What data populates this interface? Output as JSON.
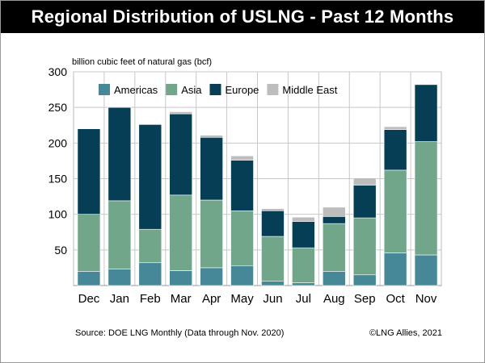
{
  "title": "Regional Distribution of USLNG - Past 12 Months",
  "footer": {
    "source": "Source: DOE LNG Monthly (Data through Nov. 2020)",
    "credit": "©LNG Allies, 2021"
  },
  "chart_data": {
    "type": "bar",
    "stacked": true,
    "ylabel": "billion cubic feet of natural gas (bcf)",
    "ylim": [
      0,
      300
    ],
    "yticks": [
      50,
      100,
      150,
      200,
      250,
      300
    ],
    "grid": true,
    "legend_position": "top-left",
    "categories": [
      "Dec",
      "Jan",
      "Feb",
      "Mar",
      "Apr",
      "May",
      "Jun",
      "Jul",
      "Aug",
      "Sep",
      "Oct",
      "Nov"
    ],
    "series": [
      {
        "name": "Americas",
        "color": "#468898",
        "values": [
          20,
          23,
          32,
          21,
          25,
          28,
          6,
          4,
          20,
          15,
          46,
          43
        ]
      },
      {
        "name": "Asia",
        "color": "#72a68b",
        "values": [
          80,
          96,
          47,
          106,
          95,
          77,
          63,
          49,
          67,
          80,
          116,
          159
        ]
      },
      {
        "name": "Europe",
        "color": "#053e55",
        "values": [
          120,
          131,
          147,
          114,
          88,
          71,
          36,
          37,
          10,
          46,
          57,
          80
        ]
      },
      {
        "name": "Middle East",
        "color": "#bdbdbd",
        "values": [
          0,
          0,
          0,
          3,
          3,
          6,
          3,
          6,
          13,
          10,
          4,
          0
        ]
      }
    ]
  }
}
